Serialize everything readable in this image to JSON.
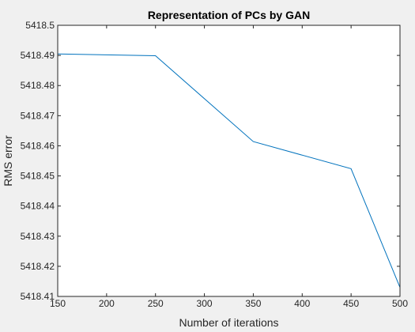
{
  "chart_data": {
    "type": "line",
    "title": "Representation of PCs by GAN",
    "xlabel": "Number of iterations",
    "ylabel": "RMS error",
    "xlim": [
      150,
      500
    ],
    "ylim": [
      5418.41,
      5418.5
    ],
    "xticks": [
      150,
      200,
      250,
      300,
      350,
      400,
      450,
      500
    ],
    "xtick_labels": [
      "150",
      "200",
      "250",
      "300",
      "350",
      "400",
      "450",
      "500"
    ],
    "yticks": [
      5418.41,
      5418.42,
      5418.43,
      5418.44,
      5418.45,
      5418.46,
      5418.47,
      5418.48,
      5418.49,
      5418.5
    ],
    "ytick_labels": [
      "5418.41",
      "5418.42",
      "5418.43",
      "5418.44",
      "5418.45",
      "5418.46",
      "5418.47",
      "5418.48",
      "5418.49",
      "5418.5"
    ],
    "grid": false,
    "series": [
      {
        "x": [
          150,
          250,
          350,
          450,
          500
        ],
        "y": [
          5418.4905,
          5418.4899,
          5418.4614,
          5418.4524,
          5418.413
        ],
        "color": "#0072bd"
      }
    ]
  },
  "colors": {
    "figure_background": "#f0f0f0",
    "axes_background": "#ffffff",
    "axes_color": "#262626",
    "line_color": "#0072bd"
  }
}
